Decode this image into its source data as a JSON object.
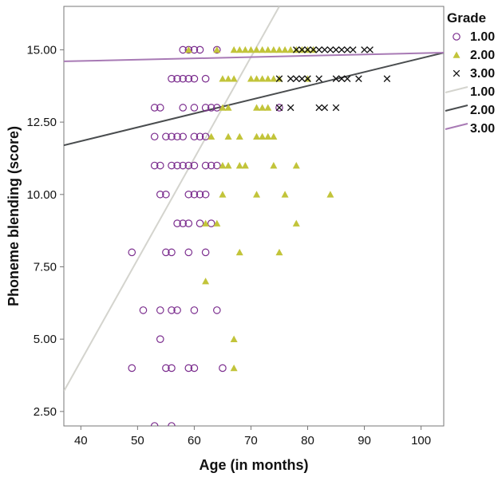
{
  "chart_data": {
    "type": "scatter",
    "xlabel": "Age (in months)",
    "ylabel": "Phoneme blending (score)",
    "xlim": [
      37,
      104
    ],
    "ylim": [
      2.0,
      16.5
    ],
    "xticks": [
      40,
      50,
      60,
      70,
      80,
      90,
      100
    ],
    "yticks": [
      2.5,
      5.0,
      7.5,
      10.0,
      12.5,
      15.0
    ],
    "xtick_labels": [
      "40",
      "50",
      "60",
      "70",
      "80",
      "90",
      "100"
    ],
    "ytick_labels": [
      "2.50",
      "5.00",
      "7.50",
      "10.00",
      "12.50",
      "15.00"
    ],
    "grid": false,
    "legend_title": "Grade",
    "legend_position": "right",
    "colors": {
      "grade1": "#7b2d8e",
      "grade2": "#c2c43a",
      "grade3": "#111111",
      "fit1": "#d4d4ce",
      "fit2": "#4a4d4f",
      "fit3": "#a87ab5",
      "axis": "#777777"
    },
    "series": [
      {
        "name": "1.00",
        "marker": "circle",
        "points": [
          [
            53,
            2
          ],
          [
            56,
            2
          ],
          [
            49,
            4
          ],
          [
            55,
            4
          ],
          [
            56,
            4
          ],
          [
            59,
            4
          ],
          [
            60,
            4
          ],
          [
            65,
            4
          ],
          [
            54,
            5
          ],
          [
            51,
            6
          ],
          [
            54,
            6
          ],
          [
            56,
            6
          ],
          [
            57,
            6
          ],
          [
            60,
            6
          ],
          [
            64,
            6
          ],
          [
            49,
            8
          ],
          [
            55,
            8
          ],
          [
            56,
            8
          ],
          [
            59,
            8
          ],
          [
            62,
            8
          ],
          [
            57,
            9
          ],
          [
            58,
            9
          ],
          [
            59,
            9
          ],
          [
            61,
            9
          ],
          [
            63,
            9
          ],
          [
            54,
            10
          ],
          [
            55,
            10
          ],
          [
            59,
            10
          ],
          [
            60,
            10
          ],
          [
            61,
            10
          ],
          [
            62,
            10
          ],
          [
            53,
            11
          ],
          [
            54,
            11
          ],
          [
            56,
            11
          ],
          [
            57,
            11
          ],
          [
            58,
            11
          ],
          [
            59,
            11
          ],
          [
            60,
            11
          ],
          [
            62,
            11
          ],
          [
            63,
            11
          ],
          [
            64,
            11
          ],
          [
            53,
            12
          ],
          [
            55,
            12
          ],
          [
            56,
            12
          ],
          [
            57,
            12
          ],
          [
            58,
            12
          ],
          [
            60,
            12
          ],
          [
            61,
            12
          ],
          [
            62,
            12
          ],
          [
            53,
            13
          ],
          [
            54,
            13
          ],
          [
            58,
            13
          ],
          [
            60,
            13
          ],
          [
            62,
            13
          ],
          [
            63,
            13
          ],
          [
            64,
            13
          ],
          [
            75,
            13
          ],
          [
            56,
            14
          ],
          [
            57,
            14
          ],
          [
            58,
            14
          ],
          [
            59,
            14
          ],
          [
            60,
            14
          ],
          [
            62,
            14
          ],
          [
            58,
            15
          ],
          [
            59,
            15
          ],
          [
            60,
            15
          ],
          [
            61,
            15
          ],
          [
            64,
            15
          ]
        ]
      },
      {
        "name": "2.00",
        "marker": "triangle",
        "points": [
          [
            67,
            4
          ],
          [
            67,
            5
          ],
          [
            62,
            7
          ],
          [
            68,
            8
          ],
          [
            75,
            8
          ],
          [
            62,
            9
          ],
          [
            64,
            9
          ],
          [
            78,
            9
          ],
          [
            65,
            10
          ],
          [
            71,
            10
          ],
          [
            76,
            10
          ],
          [
            84,
            10
          ],
          [
            65,
            11
          ],
          [
            66,
            11
          ],
          [
            68,
            11
          ],
          [
            69,
            11
          ],
          [
            74,
            11
          ],
          [
            78,
            11
          ],
          [
            63,
            12
          ],
          [
            66,
            12
          ],
          [
            68,
            12
          ],
          [
            71,
            12
          ],
          [
            72,
            12
          ],
          [
            73,
            12
          ],
          [
            74,
            12
          ],
          [
            65,
            13
          ],
          [
            66,
            13
          ],
          [
            71,
            13
          ],
          [
            72,
            13
          ],
          [
            73,
            13
          ],
          [
            65,
            14
          ],
          [
            66,
            14
          ],
          [
            67,
            14
          ],
          [
            70,
            14
          ],
          [
            71,
            14
          ],
          [
            72,
            14
          ],
          [
            73,
            14
          ],
          [
            74,
            14
          ],
          [
            75,
            14
          ],
          [
            80,
            14
          ],
          [
            59,
            15
          ],
          [
            64,
            15
          ],
          [
            67,
            15
          ],
          [
            68,
            15
          ],
          [
            69,
            15
          ],
          [
            70,
            15
          ],
          [
            71,
            15
          ],
          [
            72,
            15
          ],
          [
            73,
            15
          ],
          [
            74,
            15
          ],
          [
            75,
            15
          ],
          [
            76,
            15
          ],
          [
            77,
            15
          ],
          [
            78,
            15
          ],
          [
            79,
            15
          ],
          [
            80,
            15
          ],
          [
            81,
            15
          ]
        ]
      },
      {
        "name": "3.00",
        "marker": "x",
        "points": [
          [
            75,
            13
          ],
          [
            77,
            13
          ],
          [
            82,
            13
          ],
          [
            83,
            13
          ],
          [
            85,
            13
          ],
          [
            75,
            14
          ],
          [
            77,
            14
          ],
          [
            78,
            14
          ],
          [
            79,
            14
          ],
          [
            80,
            14
          ],
          [
            82,
            14
          ],
          [
            85,
            14
          ],
          [
            86,
            14
          ],
          [
            87,
            14
          ],
          [
            89,
            14
          ],
          [
            94,
            14
          ],
          [
            78,
            15
          ],
          [
            79,
            15
          ],
          [
            80,
            15
          ],
          [
            81,
            15
          ],
          [
            82,
            15
          ],
          [
            83,
            15
          ],
          [
            84,
            15
          ],
          [
            85,
            15
          ],
          [
            86,
            15
          ],
          [
            87,
            15
          ],
          [
            88,
            15
          ],
          [
            90,
            15
          ],
          [
            91,
            15
          ]
        ]
      }
    ],
    "fit_lines": [
      {
        "name": "1.00",
        "from": [
          37,
          3.2
        ],
        "to": [
          75,
          16.5
        ]
      },
      {
        "name": "2.00",
        "from": [
          37,
          11.7
        ],
        "to": [
          104,
          14.9
        ]
      },
      {
        "name": "3.00",
        "from": [
          37,
          14.6
        ],
        "to": [
          104,
          14.9
        ]
      }
    ]
  }
}
